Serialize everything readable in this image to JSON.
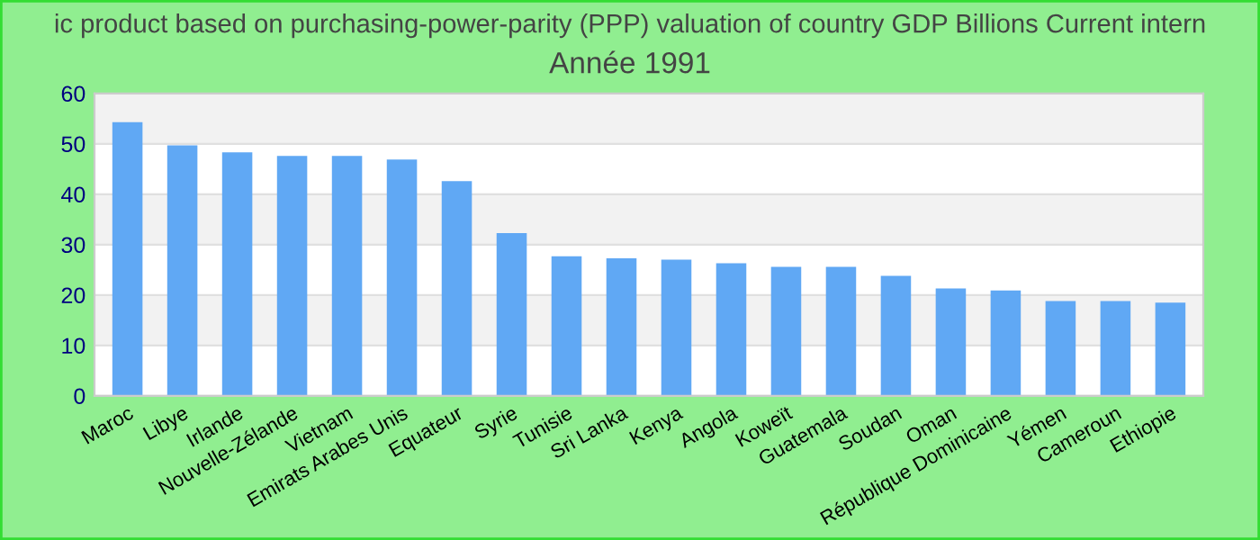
{
  "chart_data": {
    "type": "bar",
    "title": "ic product based on purchasing-power-parity (PPP) valuation of country GDP Billions Current intern",
    "subtitle": "Année 1991",
    "categories": [
      "Maroc",
      "Libye",
      "Irlande",
      "Nouvelle-Zélande",
      "Vietnam",
      "Emirats Arabes Unis",
      "Equateur",
      "Syrie",
      "Tunisie",
      "Sri Lanka",
      "Kenya",
      "Angola",
      "Koweït",
      "Guatemala",
      "Soudan",
      "Oman",
      "République Dominicaine",
      "Yémen",
      "Cameroun",
      "Ethiopie"
    ],
    "values": [
      54.3,
      49.7,
      48.3,
      47.6,
      47.6,
      46.9,
      42.6,
      32.3,
      27.7,
      27.3,
      27.0,
      26.3,
      25.6,
      25.6,
      23.8,
      21.3,
      20.9,
      18.8,
      18.8,
      18.5
    ],
    "color": "#60a8f4",
    "ylim": [
      0,
      60
    ],
    "yticks": [
      0,
      10,
      20,
      30,
      40,
      50,
      60
    ],
    "grid": "y"
  }
}
